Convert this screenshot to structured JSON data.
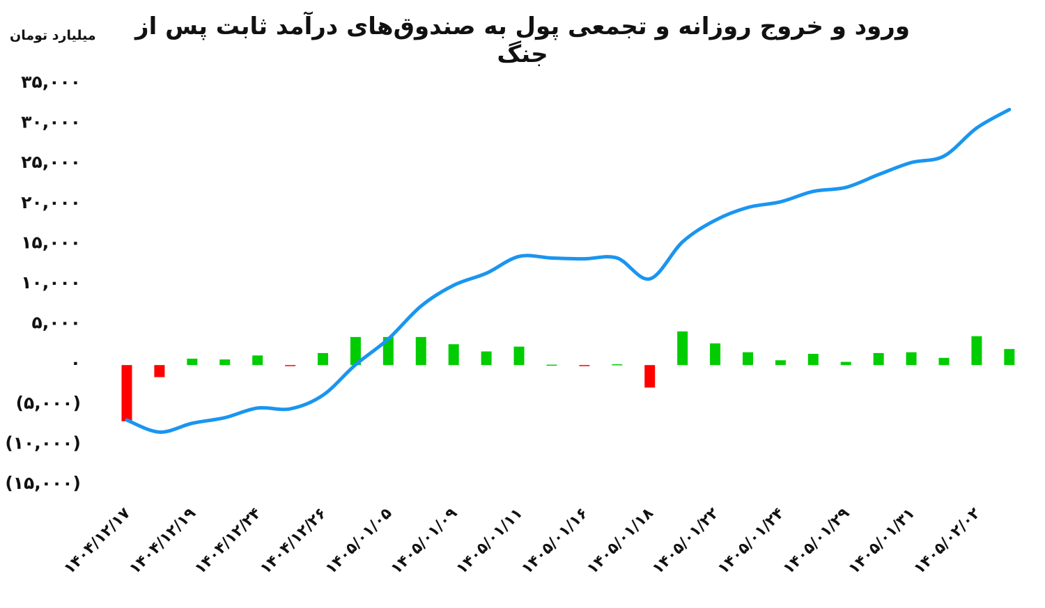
{
  "header": {
    "title": "ورود و خروج روزانه و تجمعی پول به صندوق‌های درآمد ثابت پس از جنگ",
    "unit_label": "میلیارد تومان"
  },
  "colors": {
    "positive_bar": "#00cc00",
    "negative_bar": "#ff0000",
    "cumulative_line": "#1a95f0",
    "text": "#111111"
  },
  "chart_data": {
    "type": "bar+line",
    "title": "ورود و خروج روزانه و تجمعی پول به صندوق‌های درآمد ثابت پس از جنگ",
    "ylabel": "میلیارد تومان",
    "xlabel": "",
    "ylim": [
      -15000,
      35000
    ],
    "y_ticks": [
      35000,
      30000,
      25000,
      20000,
      15000,
      10000,
      5000,
      0,
      -5000,
      -10000,
      -15000
    ],
    "y_tick_labels": [
      "۳۵,۰۰۰",
      "۳۰,۰۰۰",
      "۲۵,۰۰۰",
      "۲۰,۰۰۰",
      "۱۵,۰۰۰",
      "۱۰,۰۰۰",
      "۵,۰۰۰",
      "۰",
      "(۵,۰۰۰)",
      "(۱۰,۰۰۰)",
      "(۱۵,۰۰۰)"
    ],
    "x_tick_labels": [
      "۱۴۰۴/۱۲/۱۷",
      "۱۴۰۴/۱۲/۱۹",
      "۱۴۰۴/۱۲/۲۴",
      "۱۴۰۴/۱۲/۲۶",
      "۱۴۰۵/۰۱/۰۵",
      "۱۴۰۵/۰۱/۰۹",
      "۱۴۰۵/۰۱/۱۱",
      "۱۴۰۵/۰۱/۱۶",
      "۱۴۰۵/۰۱/۱۸",
      "۱۴۰۵/۰۱/۲۲",
      "۱۴۰۵/۰۱/۲۴",
      "۱۴۰۵/۰۱/۲۹",
      "۱۴۰۵/۰۱/۳۱",
      "۱۴۰۵/۰۲/۰۲"
    ],
    "x_tick_every": 2,
    "point_count": 28,
    "grid": false,
    "legend": "none",
    "series": [
      {
        "name": "daily_flow",
        "type": "bar",
        "values": [
          -7000,
          -1500,
          800,
          700,
          1200,
          -100,
          1500,
          3500,
          3500,
          3500,
          2600,
          1700,
          2300,
          50,
          -100,
          100,
          -2800,
          4200,
          2700,
          1600,
          600,
          1400,
          400,
          1500,
          1600,
          900,
          3600,
          2000
        ]
      },
      {
        "name": "cumulative",
        "type": "line",
        "values": [
          -7200,
          -8700,
          -7600,
          -6900,
          -5700,
          -5800,
          -4100,
          -300,
          2900,
          7000,
          9600,
          11100,
          13200,
          13000,
          12900,
          13000,
          10400,
          15000,
          17700,
          19300,
          20000,
          21300,
          21800,
          23400,
          24900,
          25700,
          29200,
          31500
        ]
      }
    ]
  }
}
